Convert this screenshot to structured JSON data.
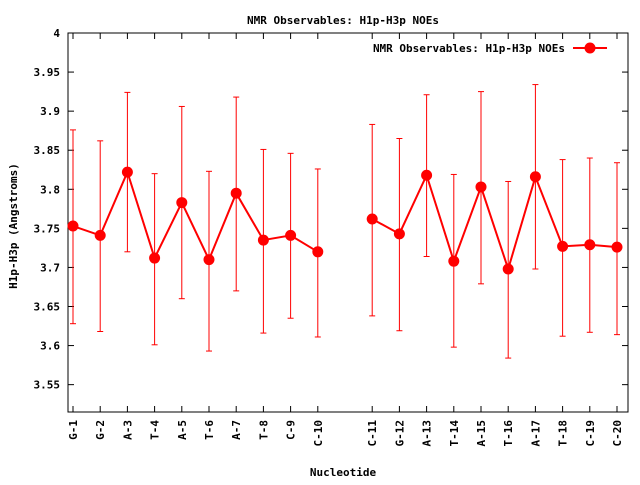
{
  "chart_data": {
    "type": "line",
    "title": "NMR Observables: H1p-H3p NOEs",
    "xlabel": "Nucleotide",
    "ylabel": "H1p-H3p (Angstroms)",
    "ylim": [
      3.515,
      4.0
    ],
    "yticks": [
      "3.55",
      "3.6",
      "3.65",
      "3.7",
      "3.75",
      "3.8",
      "3.85",
      "3.9",
      "3.95",
      "4"
    ],
    "grid": false,
    "legend": "top-right",
    "series_color": "#ff0000",
    "gap_after_index": 9,
    "series": [
      {
        "name": "NMR Observables: H1p-H3p NOEs",
        "categories": [
          "G-1",
          "G-2",
          "A-3",
          "T-4",
          "A-5",
          "T-6",
          "A-7",
          "T-8",
          "C-9",
          "C-10",
          "C-11",
          "G-12",
          "A-13",
          "T-14",
          "A-15",
          "T-16",
          "A-17",
          "T-18",
          "C-19",
          "C-20"
        ],
        "values": [
          3.753,
          3.741,
          3.822,
          3.712,
          3.783,
          3.71,
          3.795,
          3.735,
          3.741,
          3.72,
          3.762,
          3.743,
          3.818,
          3.708,
          3.803,
          3.698,
          3.816,
          3.727,
          3.729,
          3.726
        ],
        "err_low": [
          3.628,
          3.618,
          3.72,
          3.601,
          3.66,
          3.593,
          3.67,
          3.616,
          3.635,
          3.611,
          3.638,
          3.619,
          3.714,
          3.598,
          3.679,
          3.584,
          3.698,
          3.612,
          3.617,
          3.614
        ],
        "err_high": [
          3.876,
          3.862,
          3.924,
          3.82,
          3.906,
          3.823,
          3.918,
          3.851,
          3.846,
          3.826,
          3.883,
          3.865,
          3.921,
          3.819,
          3.925,
          3.81,
          3.934,
          3.838,
          3.84,
          3.834
        ]
      }
    ]
  }
}
